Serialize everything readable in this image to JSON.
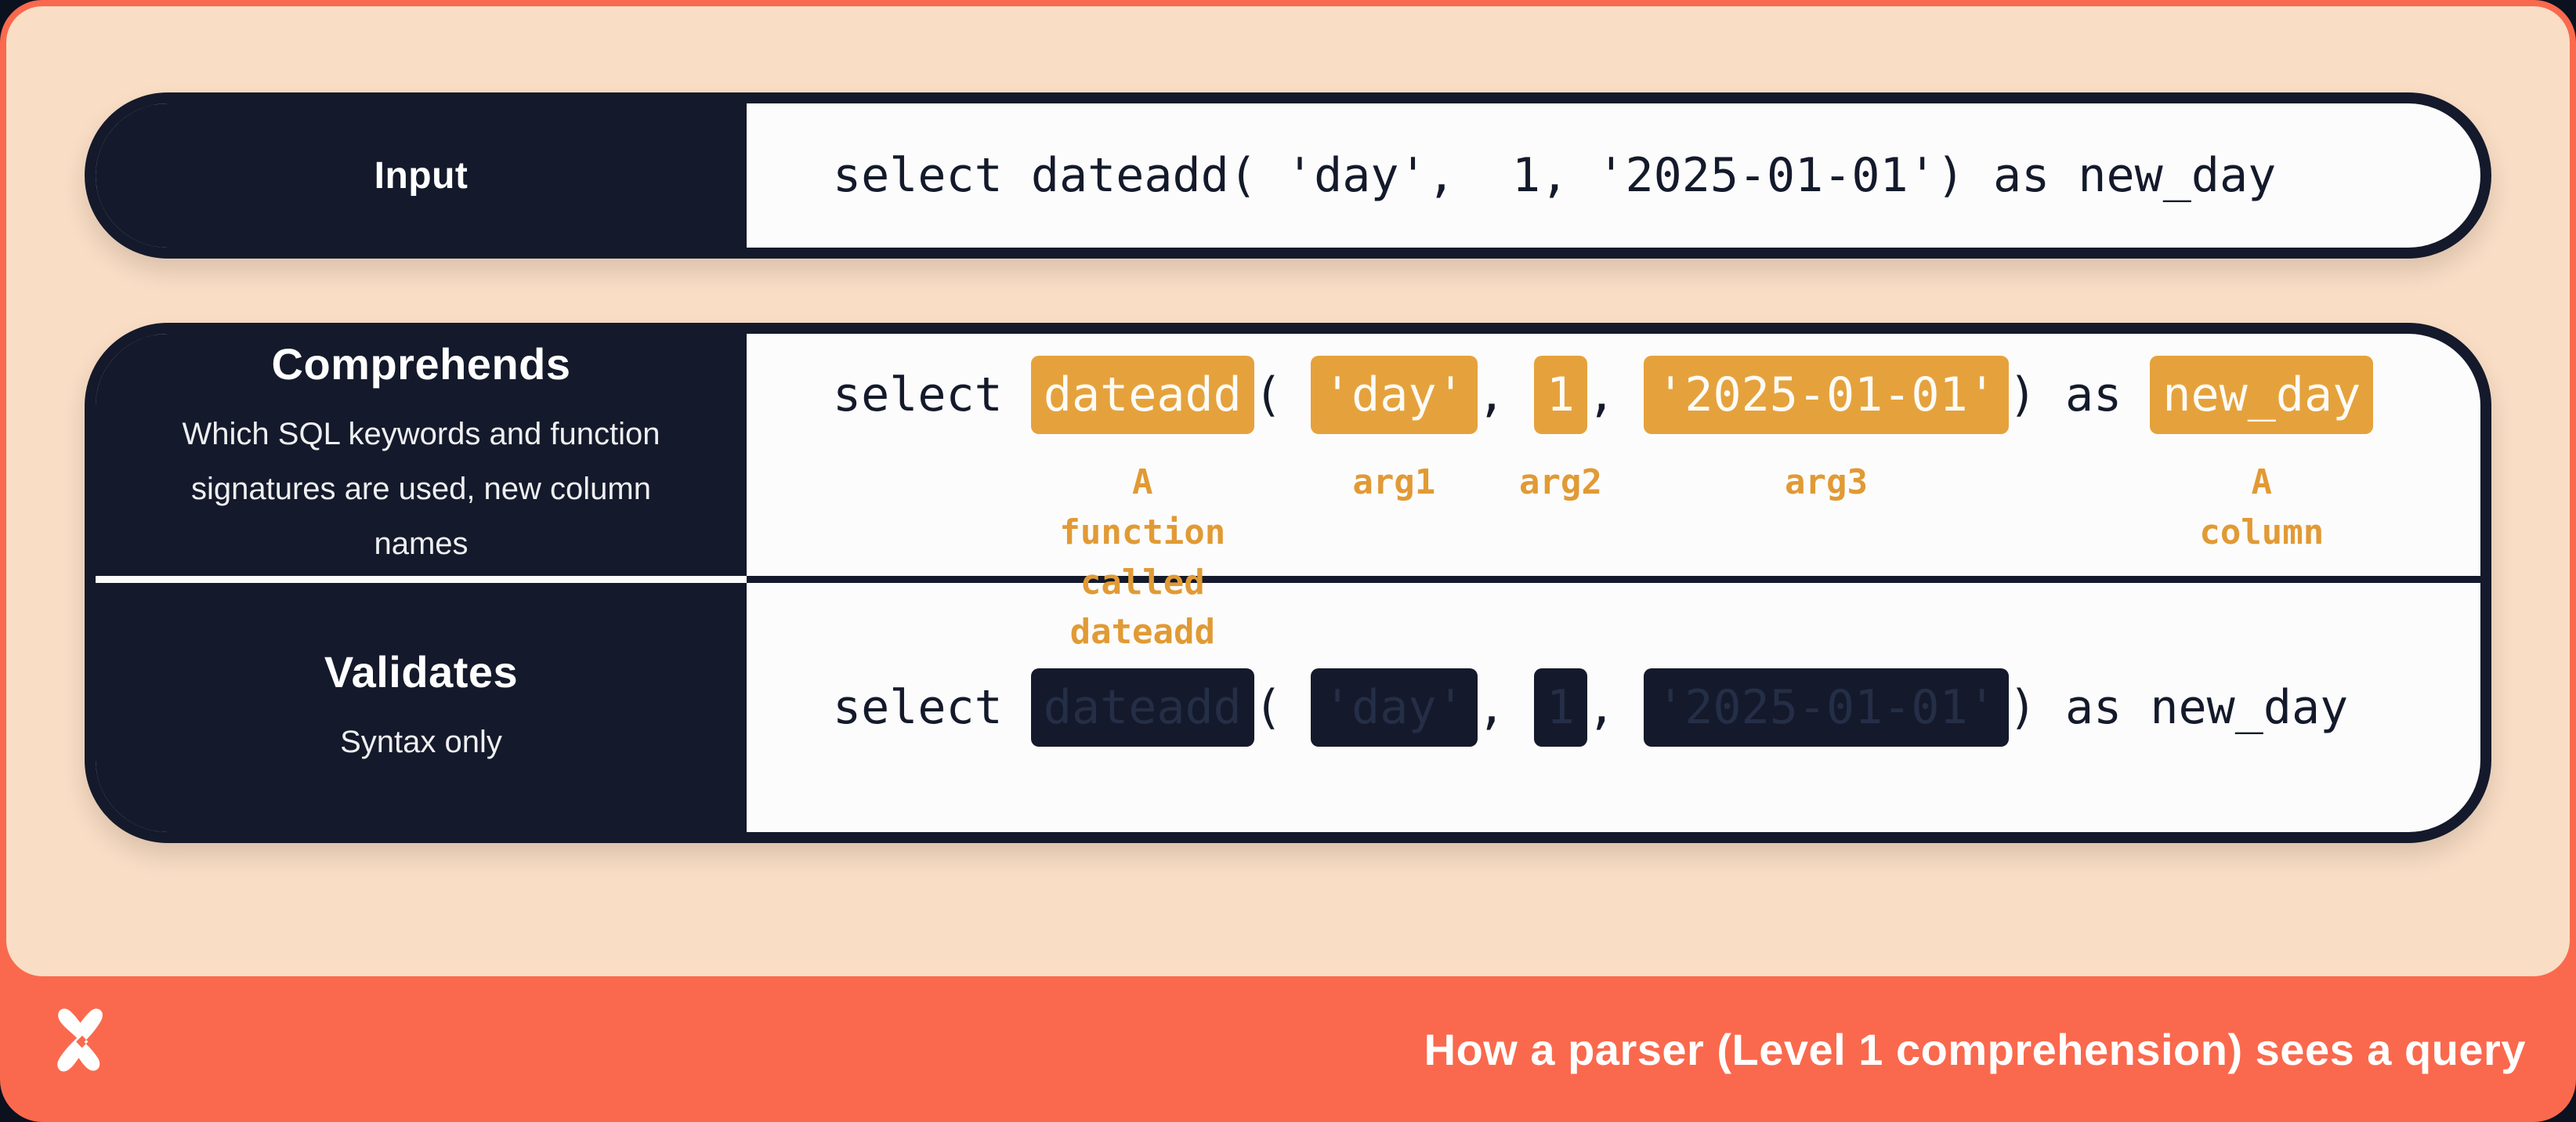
{
  "input_row": {
    "label": "Input",
    "code": "select dateadd( 'day',  1, '2025-01-01') as new_day"
  },
  "comprehends": {
    "label": "Comprehends",
    "description": "Which SQL keywords and function\nsignatures are used, new column names",
    "code_tokens": [
      {
        "text": "select ",
        "type": "plain"
      },
      {
        "text": "dateadd",
        "type": "highlight",
        "annotation": "A function\ncalled dateadd"
      },
      {
        "text": "( ",
        "type": "plain"
      },
      {
        "text": "'day'",
        "type": "highlight",
        "annotation": "arg1"
      },
      {
        "text": ", ",
        "type": "plain"
      },
      {
        "text": "1",
        "type": "highlight",
        "annotation": "arg2"
      },
      {
        "text": ", ",
        "type": "plain"
      },
      {
        "text": "'2025-01-01'",
        "type": "highlight",
        "annotation": "arg3"
      },
      {
        "text": ") as ",
        "type": "plain"
      },
      {
        "text": "new_day",
        "type": "highlight",
        "annotation": "A column"
      }
    ]
  },
  "validates": {
    "label": "Validates",
    "description": "Syntax only",
    "code_tokens": [
      {
        "text": "select ",
        "type": "plain"
      },
      {
        "text": "dateadd",
        "type": "redacted"
      },
      {
        "text": "( ",
        "type": "plain"
      },
      {
        "text": "'day'",
        "type": "redacted"
      },
      {
        "text": ", ",
        "type": "plain"
      },
      {
        "text": "1",
        "type": "redacted"
      },
      {
        "text": ", ",
        "type": "plain"
      },
      {
        "text": "'2025-01-01'",
        "type": "redacted"
      },
      {
        "text": ") as new_day",
        "type": "plain"
      }
    ]
  },
  "footer": {
    "title": "How a parser (Level 1 comprehension) sees a query",
    "logo": "x-pinwheel-logo"
  },
  "colors": {
    "coral": "#FA694D",
    "peach": "#F9DDC5",
    "navy": "#141A2B",
    "panel_white": "#FCFCFC",
    "highlight_orange": "#E5A23C",
    "annotation_orange": "#E19A35",
    "redacted_text": "#242E46"
  }
}
